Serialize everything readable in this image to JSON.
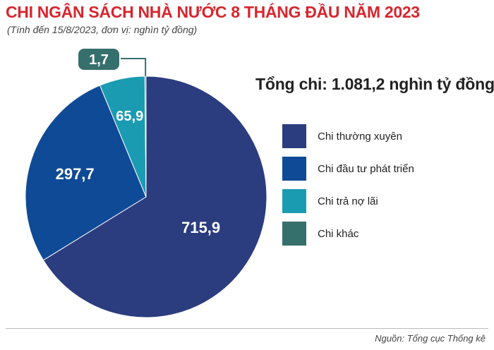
{
  "header": {
    "title": "CHI NGÂN SÁCH NHÀ NƯỚC 8 THÁNG ĐẦU NĂM 2023",
    "subtitle": "(Tính đến 15/8/2023, đơn vị: nghìn tỷ đồng)"
  },
  "total_label": "Tổng chi: 1.081,2 nghìn tỷ đồng",
  "source": "Nguồn: Tổng cục Thống kê",
  "chart_data": {
    "type": "pie",
    "title": "CHI NGÂN SÁCH NHÀ NƯỚC 8 THÁNG ĐẦU NĂM 2023",
    "start_angle": "12 o'clock, clockwise",
    "legend_position": "right",
    "slices": [
      {
        "label": "Chi thường xuyên",
        "value": 715.9,
        "value_label": "715,9",
        "color": "#2b3d7f"
      },
      {
        "label": "Chi đầu tư phát triển",
        "value": 297.7,
        "value_label": "297,7",
        "color": "#0f4a96"
      },
      {
        "label": "Chi trả nợ lãi",
        "value": 65.9,
        "value_label": "65,9",
        "color": "#1a9bb2"
      },
      {
        "label": "Chi khác",
        "value": 1.7,
        "value_label": "1,7",
        "color": "#36706d"
      }
    ]
  }
}
